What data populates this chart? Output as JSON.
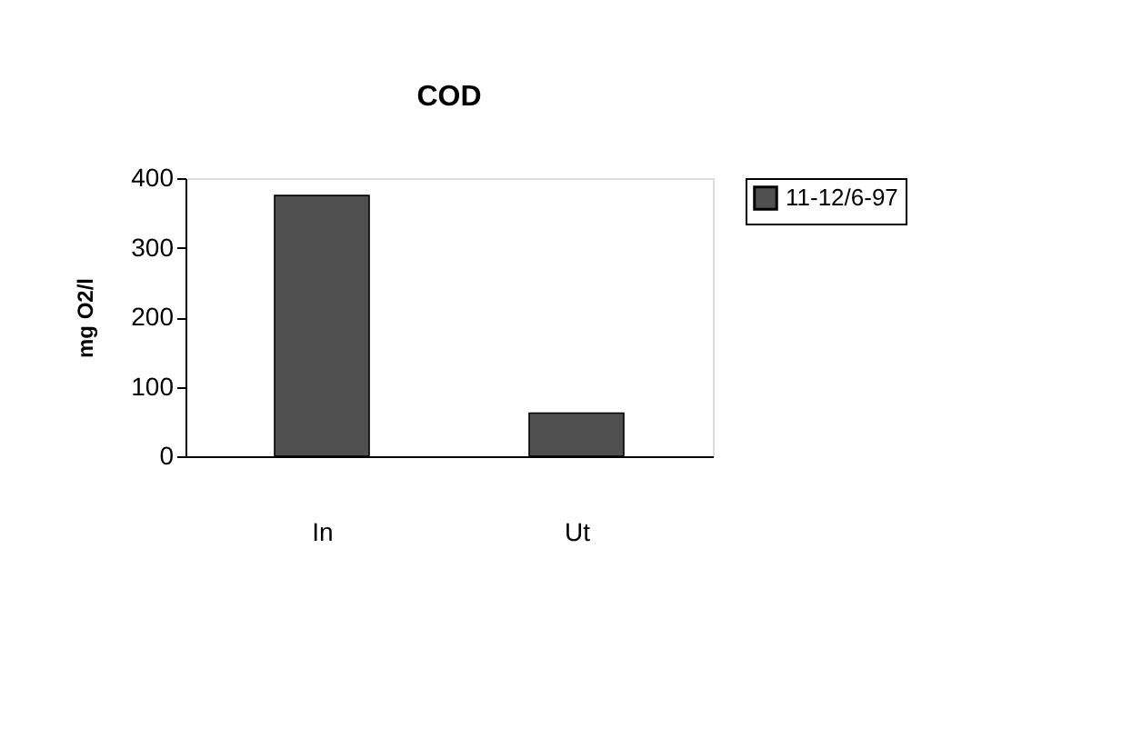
{
  "chart_data": {
    "type": "bar",
    "title": "COD",
    "ylabel": "mg O2/l",
    "categories": [
      "In",
      "Ut"
    ],
    "series": [
      {
        "name": "11-12/6-97",
        "color": "#505050",
        "values": [
          375,
          62
        ]
      }
    ],
    "ylim": [
      0,
      400
    ],
    "yticks": [
      0,
      100,
      200,
      300,
      400
    ],
    "grid": false,
    "legend": "right"
  }
}
